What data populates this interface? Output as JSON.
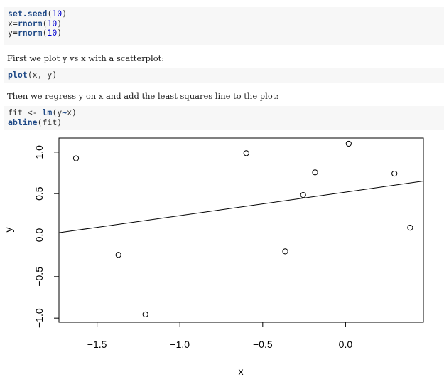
{
  "code_blocks": [
    {
      "lines": [
        [
          {
            "t": "set.seed",
            "c": "fn"
          },
          {
            "t": "(",
            "c": ""
          },
          {
            "t": "10",
            "c": "num"
          },
          {
            "t": ")",
            "c": ""
          }
        ],
        [
          {
            "t": "x=",
            "c": ""
          },
          {
            "t": "rnorm",
            "c": "fn"
          },
          {
            "t": "(",
            "c": ""
          },
          {
            "t": "10",
            "c": "num"
          },
          {
            "t": ")",
            "c": ""
          }
        ],
        [
          {
            "t": "y=",
            "c": ""
          },
          {
            "t": "rnorm",
            "c": "fn"
          },
          {
            "t": "(",
            "c": ""
          },
          {
            "t": "10",
            "c": "num"
          },
          {
            "t": ")",
            "c": ""
          }
        ]
      ]
    },
    {
      "lines": [
        [
          {
            "t": "plot",
            "c": "fn"
          },
          {
            "t": "(x, y)",
            "c": ""
          }
        ]
      ]
    },
    {
      "lines": [
        [
          {
            "t": "fit <- ",
            "c": ""
          },
          {
            "t": "lm",
            "c": "fn"
          },
          {
            "t": "(y",
            "c": ""
          },
          {
            "t": "~",
            "c": "fn"
          },
          {
            "t": "x)",
            "c": ""
          }
        ],
        [
          {
            "t": "abline",
            "c": "fn"
          },
          {
            "t": "(fit)",
            "c": ""
          }
        ]
      ]
    }
  ],
  "prose": {
    "p1": "First we plot y vs x with a scatterplot:",
    "p2": "Then we regress y on x and add the least squares line to the plot:"
  },
  "chart_data": {
    "type": "scatter",
    "title": "",
    "xlabel": "x",
    "ylabel": "y",
    "xlim": [
      -1.73,
      0.47
    ],
    "ylim": [
      -1.05,
      1.17
    ],
    "x_ticks": [
      -1.5,
      -1.0,
      -0.5,
      0.0
    ],
    "x_tick_labels": [
      "−1.5",
      "−1.0",
      "−0.5",
      "0.0"
    ],
    "y_ticks": [
      -1.0,
      -0.5,
      0.0,
      0.5,
      1.0
    ],
    "y_tick_labels": [
      "−1.0",
      "−0.5",
      "0.0",
      "0.5",
      "1.0"
    ],
    "points": [
      {
        "x": 0.019,
        "y": 1.102
      },
      {
        "x": -0.184,
        "y": 0.756
      },
      {
        "x": -1.371,
        "y": -0.238
      },
      {
        "x": -0.599,
        "y": 0.987
      },
      {
        "x": 0.295,
        "y": 0.741
      },
      {
        "x": 0.39,
        "y": 0.089
      },
      {
        "x": -1.208,
        "y": -0.955
      },
      {
        "x": -0.364,
        "y": -0.196
      },
      {
        "x": -1.627,
        "y": 0.925
      },
      {
        "x": -0.256,
        "y": 0.483
      }
    ],
    "regression_line": {
      "intercept": 0.518,
      "slope": 0.283
    },
    "grid": false,
    "marker": "open-circle",
    "line_color": "#000000"
  }
}
